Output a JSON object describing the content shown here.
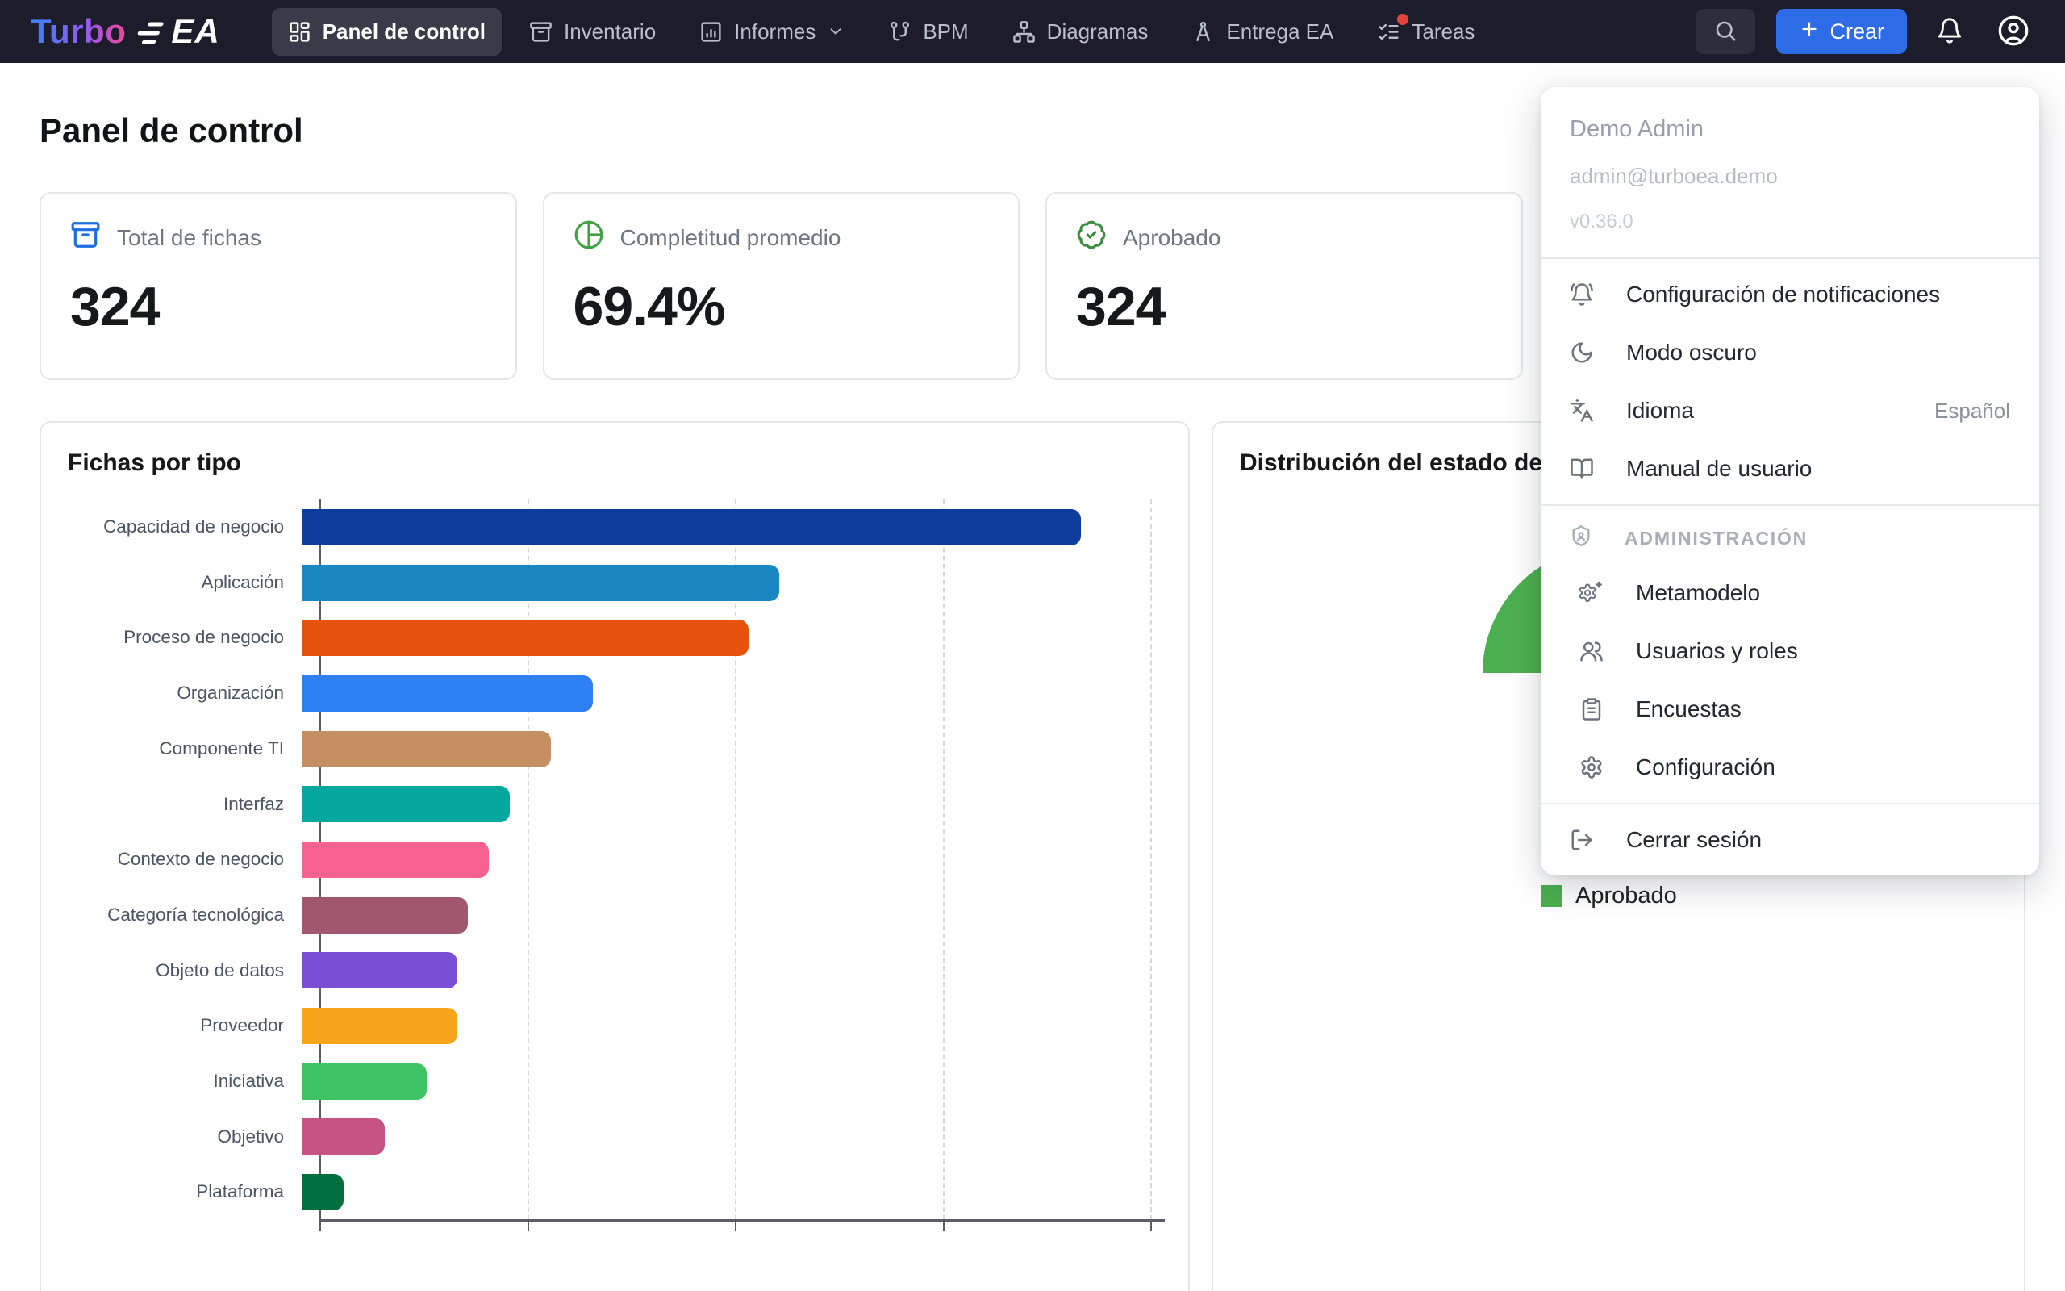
{
  "navbar": {
    "logo": {
      "gradient_text": "Turbo",
      "suffix_text": "EA"
    },
    "items": [
      {
        "id": "panel-de-control",
        "label": "Panel de control",
        "icon": "grid-icon",
        "active": true
      },
      {
        "id": "inventario",
        "label": "Inventario",
        "icon": "archive-icon",
        "active": false
      },
      {
        "id": "informes",
        "label": "Informes",
        "icon": "chart-square-icon",
        "active": false,
        "has_chevron": true
      },
      {
        "id": "bpm",
        "label": "BPM",
        "icon": "workflow-icon",
        "active": false
      },
      {
        "id": "diagramas",
        "label": "Diagramas",
        "icon": "network-icon",
        "active": false
      },
      {
        "id": "entrega-ea",
        "label": "Entrega EA",
        "icon": "compass-icon",
        "active": false
      },
      {
        "id": "tareas",
        "label": "Tareas",
        "icon": "list-checks-icon",
        "active": false,
        "notification_dot": true
      }
    ],
    "create_button": {
      "label": "Crear",
      "icon": "plus-icon"
    },
    "colors": {
      "bar_bg": "#1c1c2b",
      "active_item_bg": "#3a3a49",
      "create_blue": "#2e6be6",
      "logo_gradient_from": "#3b82f6",
      "logo_gradient_to": "#ec4899",
      "badge_dot": "#e3453c"
    }
  },
  "page": {
    "title": "Panel de control"
  },
  "stats": [
    {
      "label": "Total de fichas",
      "value": "324",
      "icon": "archive-icon",
      "icon_color": "#1d6fe0"
    },
    {
      "label": "Completitud promedio",
      "value": "69.4%",
      "icon": "chart-pie-icon",
      "icon_color": "#43a047"
    },
    {
      "label": "Aprobado",
      "value": "324",
      "icon": "badge-check-icon",
      "icon_color": "#3d8c40"
    }
  ],
  "chart_data": [
    {
      "type": "bar",
      "title": "Fichas por tipo",
      "orientation": "horizontal",
      "categories": [
        "Capacidad de negocio",
        "Aplicación",
        "Proceso de negocio",
        "Organización",
        "Componente TI",
        "Interfaz",
        "Contexto de negocio",
        "Categoría tecnológica",
        "Objeto de datos",
        "Proveedor",
        "Iniciativa",
        "Objetivo",
        "Plataforma"
      ],
      "values": [
        75,
        46,
        43,
        28,
        24,
        20,
        18,
        16,
        15,
        15,
        12,
        8,
        4
      ],
      "colors": [
        "#0e3d9e",
        "#1b87c2",
        "#e5530d",
        "#2f7ff5",
        "#c68e63",
        "#04a79d",
        "#f76190",
        "#a1586f",
        "#7a4fd3",
        "#f9a51b",
        "#3ec464",
        "#c75385",
        "#036e3e"
      ],
      "xlabel": "",
      "ylabel": "",
      "xlim": [
        0,
        80
      ],
      "gridline_values": [
        20,
        40,
        60,
        80
      ],
      "grid": "vertical-dashed",
      "x_tick_labels_visible": false
    },
    {
      "type": "pie",
      "title": "Distribución del estado de aprobación",
      "segments": [
        {
          "label": "Aprobado",
          "value": 324,
          "color": "#4caf50"
        }
      ],
      "legend": [
        "Aprobado"
      ],
      "legend_position": "bottom-left",
      "visibility_note": "donut mostly covered by the open user menu; only upper-left green arc visible"
    }
  ],
  "user_menu": {
    "name": "Demo Admin",
    "email": "admin@turboea.demo",
    "version": "v0.36.0",
    "items": [
      {
        "label": "Configuración de notificaciones",
        "icon": "bell-ring-icon"
      },
      {
        "label": "Modo oscuro",
        "icon": "moon-icon"
      },
      {
        "label": "Idioma",
        "icon": "languages-icon",
        "value": "Español"
      },
      {
        "label": "Manual de usuario",
        "icon": "book-open-icon"
      }
    ],
    "admin_section": {
      "label": "ADMINISTRACIÓN",
      "icon": "shield-user-icon",
      "items": [
        {
          "label": "Metamodelo",
          "icon": "gear-sparkle-icon"
        },
        {
          "label": "Usuarios y roles",
          "icon": "users-icon"
        },
        {
          "label": "Encuestas",
          "icon": "clipboard-list-icon"
        },
        {
          "label": "Configuración",
          "icon": "gear-icon"
        }
      ]
    },
    "logout": {
      "label": "Cerrar sesión",
      "icon": "log-out-icon"
    }
  }
}
